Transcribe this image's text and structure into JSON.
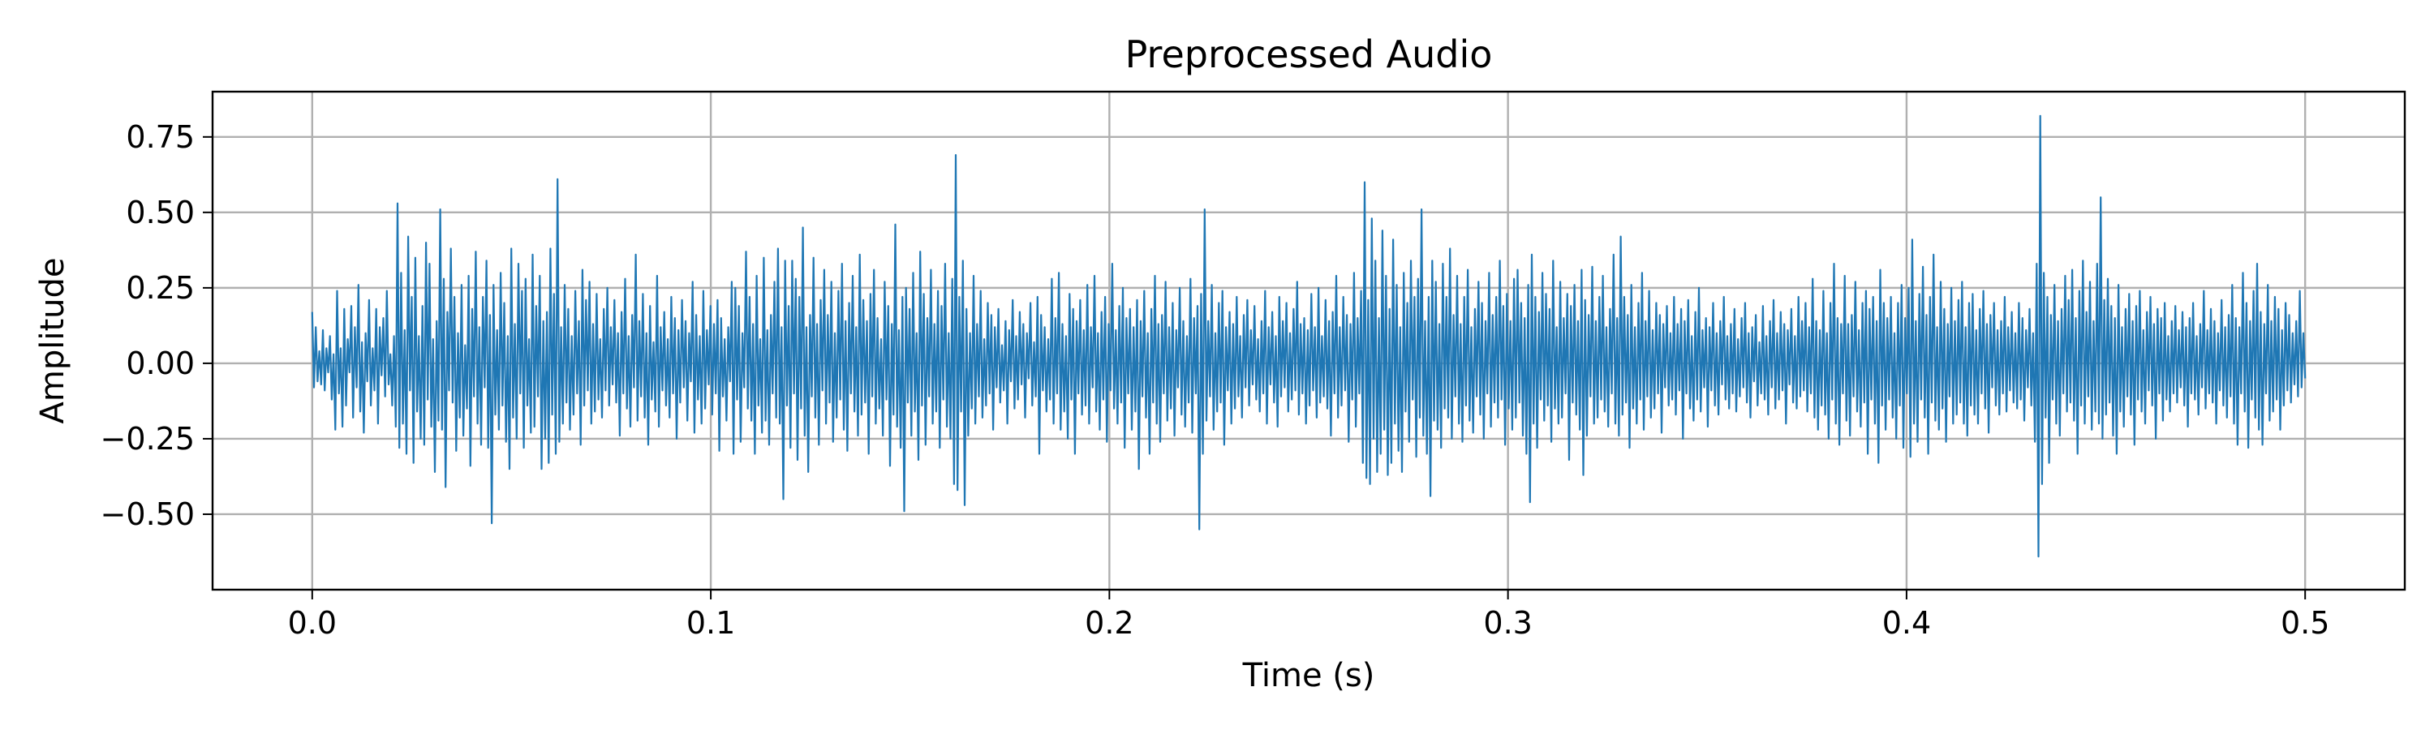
{
  "chart_data": {
    "type": "line",
    "title": "Preprocessed Audio",
    "xlabel": "Time (s)",
    "ylabel": "Amplitude",
    "xlim": [
      -0.025,
      0.525
    ],
    "ylim": [
      -0.75,
      0.9
    ],
    "grid": true,
    "x_ticks": [
      0.0,
      0.1,
      0.2,
      0.3,
      0.4,
      0.5
    ],
    "x_tick_labels": [
      "0.0",
      "0.1",
      "0.2",
      "0.3",
      "0.4",
      "0.5"
    ],
    "y_ticks": [
      -0.5,
      -0.25,
      0.0,
      0.25,
      0.5,
      0.75
    ],
    "y_tick_labels": [
      "−0.50",
      "−0.25",
      "0.00",
      "0.25",
      "0.50",
      "0.75"
    ],
    "color": "#1f77b4",
    "series": [
      {
        "x_start": 0.0,
        "x_end": 0.5,
        "values": [
          0.17,
          -0.08,
          0.12,
          -0.06,
          0.04,
          -0.07,
          0.11,
          -0.09,
          0.05,
          -0.03,
          0.09,
          -0.12,
          0.03,
          -0.22,
          0.24,
          -0.1,
          0.05,
          -0.21,
          0.18,
          -0.14,
          0.08,
          -0.03,
          0.19,
          -0.18,
          0.12,
          -0.08,
          0.26,
          -0.16,
          0.07,
          -0.23,
          0.1,
          -0.06,
          0.21,
          -0.14,
          0.05,
          -0.09,
          0.18,
          -0.2,
          0.12,
          -0.04,
          0.15,
          -0.11,
          0.24,
          -0.07,
          0.03,
          -0.14,
          0.09,
          -0.21,
          0.53,
          -0.28,
          0.3,
          -0.2,
          0.11,
          -0.3,
          0.42,
          -0.09,
          0.22,
          -0.33,
          0.35,
          -0.16,
          0.09,
          -0.25,
          0.19,
          -0.27,
          0.4,
          -0.12,
          0.33,
          -0.21,
          0.08,
          -0.36,
          0.14,
          -0.19,
          0.51,
          -0.22,
          0.28,
          -0.41,
          0.17,
          -0.09,
          0.38,
          -0.13,
          0.22,
          -0.29,
          0.1,
          -0.18,
          0.26,
          -0.24,
          0.06,
          -0.15,
          0.29,
          -0.34,
          0.18,
          -0.11,
          0.37,
          -0.2,
          0.12,
          -0.27,
          0.22,
          -0.08,
          0.34,
          -0.28,
          0.16,
          -0.53,
          0.26,
          -0.17,
          0.11,
          -0.22,
          0.3,
          -0.14,
          0.2,
          -0.26,
          0.09,
          -0.35,
          0.38,
          -0.18,
          0.13,
          -0.25,
          0.33,
          -0.1,
          0.24,
          -0.28,
          0.28,
          -0.14,
          0.08,
          -0.23,
          0.36,
          -0.21,
          0.19,
          -0.11,
          0.29,
          -0.35,
          0.14,
          -0.25,
          0.17,
          -0.33,
          0.38,
          -0.17,
          0.23,
          -0.3,
          0.61,
          -0.26,
          0.12,
          -0.2,
          0.26,
          -0.13,
          0.18,
          -0.22,
          0.09,
          -0.17,
          0.24,
          -0.1,
          0.14,
          -0.27,
          0.31,
          -0.14,
          0.21,
          -0.09,
          0.27,
          -0.2,
          0.13,
          -0.16,
          0.23,
          -0.12,
          0.08,
          -0.18,
          0.18,
          -0.09,
          0.25,
          -0.14,
          0.12,
          -0.07,
          0.21,
          -0.13,
          0.1,
          -0.24,
          0.17,
          -0.1,
          0.28,
          -0.15,
          0.09,
          -0.21,
          0.16,
          -0.08,
          0.36,
          -0.19,
          0.14,
          -0.11,
          0.23,
          -0.18,
          0.1,
          -0.27,
          0.19,
          -0.12,
          0.07,
          -0.16,
          0.29,
          -0.21,
          0.12,
          -0.09,
          0.17,
          -0.14,
          0.08,
          -0.18,
          0.22,
          -0.1,
          0.15,
          -0.25,
          0.11,
          -0.13,
          0.21,
          -0.08,
          0.14,
          -0.19,
          0.1,
          -0.06,
          0.27,
          -0.23,
          0.16,
          -0.12,
          0.09,
          -0.2,
          0.24,
          -0.15,
          0.11,
          -0.07,
          0.19,
          -0.17,
          0.13,
          -0.1,
          0.21,
          -0.29,
          0.15,
          -0.11,
          0.08,
          -0.19,
          0.12,
          -0.06,
          0.27,
          -0.3,
          0.25,
          -0.12,
          0.19,
          -0.26,
          0.1,
          -0.08,
          0.37,
          -0.15,
          0.22,
          -0.19,
          0.13,
          -0.3,
          0.29,
          -0.14,
          0.08,
          -0.23,
          0.35,
          -0.19,
          0.11,
          -0.27,
          0.16,
          -0.1,
          0.27,
          -0.18,
          0.38,
          -0.2,
          0.12,
          -0.45,
          0.34,
          -0.14,
          0.19,
          -0.28,
          0.34,
          -0.1,
          0.28,
          -0.32,
          0.22,
          -0.15,
          0.45,
          -0.24,
          0.12,
          -0.36,
          0.16,
          -0.11,
          0.35,
          -0.18,
          0.13,
          -0.27,
          0.21,
          -0.09,
          0.31,
          -0.2,
          0.16,
          -0.13,
          0.27,
          -0.26,
          0.1,
          -0.18,
          0.24,
          -0.12,
          0.33,
          -0.22,
          0.14,
          -0.29,
          0.2,
          -0.1,
          0.29,
          -0.16,
          0.12,
          -0.24,
          0.36,
          -0.17,
          0.21,
          -0.13,
          0.14,
          -0.3,
          0.23,
          -0.11,
          0.31,
          -0.2,
          0.15,
          -0.15,
          0.08,
          -0.24,
          0.27,
          -0.12,
          0.19,
          -0.34,
          0.13,
          -0.17,
          0.46,
          -0.21,
          0.11,
          -0.28,
          0.22,
          -0.49,
          0.25,
          -0.13,
          0.18,
          -0.24,
          0.3,
          -0.16,
          0.1,
          -0.32,
          0.37,
          -0.14,
          0.23,
          -0.27,
          0.15,
          -0.11,
          0.31,
          -0.2,
          0.13,
          -0.16,
          0.24,
          -0.28,
          0.19,
          -0.12,
          0.33,
          -0.21,
          0.1,
          -0.25,
          0.28,
          -0.4,
          0.69,
          -0.42,
          0.22,
          -0.16,
          0.34,
          -0.47,
          0.18,
          -0.24,
          0.1,
          -0.15,
          0.29,
          -0.2,
          0.13,
          -0.11,
          0.24,
          -0.18,
          0.08,
          -0.14,
          0.2,
          -0.1,
          0.16,
          -0.22,
          0.12,
          -0.08,
          0.18,
          -0.13,
          0.06,
          -0.09,
          0.14,
          -0.2,
          0.11,
          -0.06,
          0.21,
          -0.15,
          0.09,
          -0.12,
          0.17,
          -0.07,
          0.13,
          -0.18,
          0.1,
          -0.05,
          0.2,
          -0.14,
          0.07,
          -0.11,
          0.22,
          -0.3,
          0.16,
          -0.09,
          0.12,
          -0.16,
          0.08,
          -0.12,
          0.28,
          -0.2,
          0.15,
          -0.1,
          0.3,
          -0.22,
          0.13,
          -0.16,
          0.09,
          -0.25,
          0.23,
          -0.12,
          0.18,
          -0.3,
          0.14,
          -0.1,
          0.21,
          -0.17,
          0.11,
          -0.14,
          0.26,
          -0.2,
          0.12,
          -0.08,
          0.29,
          -0.16,
          0.1,
          -0.22,
          0.17,
          -0.12,
          0.22,
          -0.26,
          0.13,
          -0.09,
          0.33,
          -0.15,
          0.11,
          -0.2,
          0.19,
          -0.13,
          0.25,
          -0.28,
          0.15,
          -0.1,
          0.18,
          -0.22,
          0.12,
          -0.16,
          0.21,
          -0.35,
          0.14,
          -0.11,
          0.24,
          -0.18,
          0.1,
          -0.3,
          0.18,
          -0.13,
          0.29,
          -0.2,
          0.13,
          -0.26,
          0.16,
          -0.1,
          0.27,
          -0.19,
          0.12,
          -0.15,
          0.2,
          -0.24,
          0.11,
          -0.08,
          0.25,
          -0.17,
          0.14,
          -0.21,
          0.09,
          -0.13,
          0.28,
          -0.23,
          0.15,
          -0.1,
          0.19,
          -0.55,
          0.23,
          -0.3,
          0.51,
          -0.19,
          0.14,
          -0.11,
          0.26,
          -0.22,
          0.1,
          -0.16,
          0.2,
          -0.13,
          0.24,
          -0.27,
          0.12,
          -0.09,
          0.17,
          -0.2,
          0.13,
          -0.15,
          0.22,
          -0.11,
          0.09,
          -0.18,
          0.16,
          -0.08,
          0.21,
          -0.14,
          0.11,
          -0.07,
          0.19,
          -0.12,
          0.08,
          -0.16,
          0.14,
          -0.1,
          0.24,
          -0.2,
          0.12,
          -0.07,
          0.17,
          -0.13,
          0.09,
          -0.21,
          0.22,
          -0.11,
          0.14,
          -0.08,
          0.2,
          -0.16,
          0.1,
          -0.12,
          0.18,
          -0.09,
          0.27,
          -0.17,
          0.13,
          -0.1,
          0.15,
          -0.2,
          0.11,
          -0.14,
          0.23,
          -0.09,
          0.12,
          -0.18,
          0.25,
          -0.13,
          0.09,
          -0.11,
          0.21,
          -0.15,
          0.14,
          -0.24,
          0.17,
          -0.1,
          0.29,
          -0.18,
          0.12,
          -0.14,
          0.22,
          -0.09,
          0.16,
          -0.26,
          0.13,
          -0.12,
          0.3,
          -0.21,
          0.15,
          -0.1,
          0.24,
          -0.33,
          0.6,
          -0.38,
          0.21,
          -0.4,
          0.48,
          -0.25,
          0.34,
          -0.36,
          0.15,
          -0.3,
          0.44,
          -0.22,
          0.29,
          -0.37,
          0.18,
          -0.33,
          0.41,
          -0.2,
          0.26,
          -0.29,
          0.12,
          -0.36,
          0.3,
          -0.16,
          0.2,
          -0.26,
          0.34,
          -0.12,
          0.22,
          -0.31,
          0.28,
          -0.18,
          0.51,
          -0.24,
          0.14,
          -0.3,
          0.22,
          -0.44,
          0.34,
          -0.19,
          0.27,
          -0.22,
          0.13,
          -0.28,
          0.33,
          -0.15,
          0.22,
          -0.18,
          0.38,
          -0.25,
          0.16,
          -0.11,
          0.29,
          -0.2,
          0.13,
          -0.26,
          0.22,
          -0.14,
          0.31,
          -0.19,
          0.12,
          -0.23,
          0.18,
          -0.11,
          0.27,
          -0.17,
          0.2,
          -0.25,
          0.14,
          -0.1,
          0.3,
          -0.21,
          0.16,
          -0.13,
          0.22,
          -0.18,
          0.34,
          -0.12,
          0.19,
          -0.27,
          0.23,
          -0.15,
          0.14,
          -0.22,
          0.28,
          -0.18,
          0.31,
          -0.13,
          0.2,
          -0.24,
          0.15,
          -0.3,
          0.26,
          -0.46,
          0.36,
          -0.2,
          0.22,
          -0.28,
          0.17,
          -0.12,
          0.3,
          -0.19,
          0.23,
          -0.14,
          0.18,
          -0.26,
          0.34,
          -0.15,
          0.12,
          -0.2,
          0.27,
          -0.18,
          0.15,
          -0.1,
          0.23,
          -0.32,
          0.19,
          -0.13,
          0.26,
          -0.17,
          0.14,
          -0.22,
          0.31,
          -0.37,
          0.21,
          -0.24,
          0.16,
          -0.11,
          0.32,
          -0.2,
          0.14,
          -0.18,
          0.22,
          -0.12,
          0.29,
          -0.16,
          0.12,
          -0.21,
          0.18,
          -0.1,
          0.36,
          -0.2,
          0.15,
          -0.24,
          0.42,
          -0.17,
          0.22,
          -0.13,
          0.16,
          -0.28,
          0.26,
          -0.15,
          0.12,
          -0.2,
          0.2,
          -0.12,
          0.3,
          -0.22,
          0.14,
          -0.11,
          0.24,
          -0.18,
          0.11,
          -0.15,
          0.2,
          -0.1,
          0.16,
          -0.23,
          0.13,
          -0.08,
          0.19,
          -0.14,
          0.1,
          -0.12,
          0.22,
          -0.17,
          0.13,
          -0.09,
          0.18,
          -0.25,
          0.14,
          -0.1,
          0.21,
          -0.15,
          0.09,
          -0.19,
          0.17,
          -0.12,
          0.25,
          -0.16,
          0.11,
          -0.08,
          0.15,
          -0.21,
          0.12,
          -0.09,
          0.2,
          -0.14,
          0.1,
          -0.17,
          0.14,
          -0.07,
          0.22,
          -0.12,
          0.09,
          -0.15,
          0.13,
          -0.1,
          0.18,
          -0.16,
          0.08,
          -0.11,
          0.15,
          -0.08,
          0.2,
          -0.13,
          0.1,
          -0.18,
          0.12,
          -0.06,
          0.16,
          -0.14,
          0.07,
          -0.1,
          0.19,
          -0.12,
          0.09,
          -0.17,
          0.14,
          -0.08,
          0.21,
          -0.15,
          0.1,
          -0.12,
          0.17,
          -0.09,
          0.13,
          -0.2,
          0.11,
          -0.07,
          0.18,
          -0.13,
          0.09,
          -0.15,
          0.22,
          -0.11,
          0.14,
          -0.09,
          0.2,
          -0.16,
          0.12,
          -0.1,
          0.28,
          -0.18,
          0.14,
          -0.22,
          0.11,
          -0.14,
          0.24,
          -0.17,
          0.1,
          -0.25,
          0.2,
          -0.12,
          0.33,
          -0.2,
          0.15,
          -0.27,
          0.13,
          -0.1,
          0.29,
          -0.19,
          0.13,
          -0.24,
          0.16,
          -0.11,
          0.27,
          -0.16,
          0.11,
          -0.21,
          0.2,
          -0.13,
          0.24,
          -0.3,
          0.18,
          -0.12,
          0.22,
          -0.2,
          0.14,
          -0.33,
          0.31,
          -0.14,
          0.2,
          -0.22,
          0.15,
          -0.12,
          0.22,
          -0.18,
          0.1,
          -0.25,
          0.2,
          -0.14,
          0.26,
          -0.28,
          0.15,
          -0.1,
          0.25,
          -0.31,
          0.41,
          -0.2,
          0.14,
          -0.26,
          0.23,
          -0.12,
          0.32,
          -0.18,
          0.16,
          -0.3,
          0.22,
          -0.13,
          0.36,
          -0.19,
          0.12,
          -0.22,
          0.27,
          -0.15,
          0.18,
          -0.26,
          0.13,
          -0.11,
          0.25,
          -0.2,
          0.14,
          -0.17,
          0.21,
          -0.13,
          0.27,
          -0.2,
          0.12,
          -0.24,
          0.2,
          -0.14,
          0.23,
          -0.17,
          0.11,
          -0.2,
          0.18,
          -0.1,
          0.24,
          -0.15,
          0.13,
          -0.23,
          0.16,
          -0.08,
          0.2,
          -0.14,
          0.11,
          -0.17,
          0.14,
          -0.1,
          0.22,
          -0.16,
          0.12,
          -0.09,
          0.17,
          -0.13,
          0.1,
          -0.15,
          0.2,
          -0.12,
          0.15,
          -0.19,
          0.11,
          -0.08,
          0.18,
          -0.14,
          0.1,
          -0.26,
          0.33,
          -0.64,
          0.82,
          -0.4,
          0.3,
          -0.18,
          0.22,
          -0.33,
          0.16,
          -0.12,
          0.26,
          -0.2,
          0.14,
          -0.24,
          0.18,
          -0.1,
          0.29,
          -0.16,
          0.21,
          -0.13,
          0.31,
          -0.19,
          0.15,
          -0.3,
          0.24,
          -0.14,
          0.34,
          -0.2,
          0.17,
          -0.11,
          0.27,
          -0.22,
          0.14,
          -0.16,
          0.33,
          -0.2,
          0.55,
          -0.25,
          0.21,
          -0.17,
          0.28,
          -0.13,
          0.19,
          -0.24,
          0.15,
          -0.3,
          0.26,
          -0.16,
          0.12,
          -0.21,
          0.18,
          -0.11,
          0.23,
          -0.17,
          0.14,
          -0.27,
          0.19,
          -0.12,
          0.24,
          -0.16,
          0.11,
          -0.2,
          0.17,
          -0.09,
          0.22,
          -0.14,
          0.13,
          -0.25,
          0.18,
          -0.1,
          0.15,
          -0.19,
          0.2,
          -0.12,
          0.09,
          -0.16,
          0.14,
          -0.1,
          0.19,
          -0.13,
          0.11,
          -0.08,
          0.17,
          -0.14,
          0.12,
          -0.21,
          0.15,
          -0.1,
          0.2,
          -0.12,
          0.09,
          -0.17,
          0.13,
          -0.08,
          0.24,
          -0.15,
          0.11,
          -0.1,
          0.18,
          -0.13,
          0.14,
          -0.2,
          0.1,
          -0.09,
          0.21,
          -0.14,
          0.12,
          -0.18,
          0.16,
          -0.11,
          0.26,
          -0.2,
          0.15,
          -0.27,
          0.12,
          -0.1,
          0.3,
          -0.16,
          0.2,
          -0.28,
          0.14,
          -0.12,
          0.24,
          -0.18,
          0.33,
          -0.22,
          0.17,
          -0.27,
          0.13,
          -0.1,
          0.26,
          -0.19,
          0.14,
          -0.16,
          0.22,
          -0.12,
          0.18,
          -0.22,
          0.11,
          -0.14,
          0.2,
          -0.09,
          0.16,
          -0.13,
          0.1,
          -0.07,
          0.14,
          -0.11,
          0.24,
          -0.08,
          0.1,
          -0.05
        ]
      }
    ]
  }
}
